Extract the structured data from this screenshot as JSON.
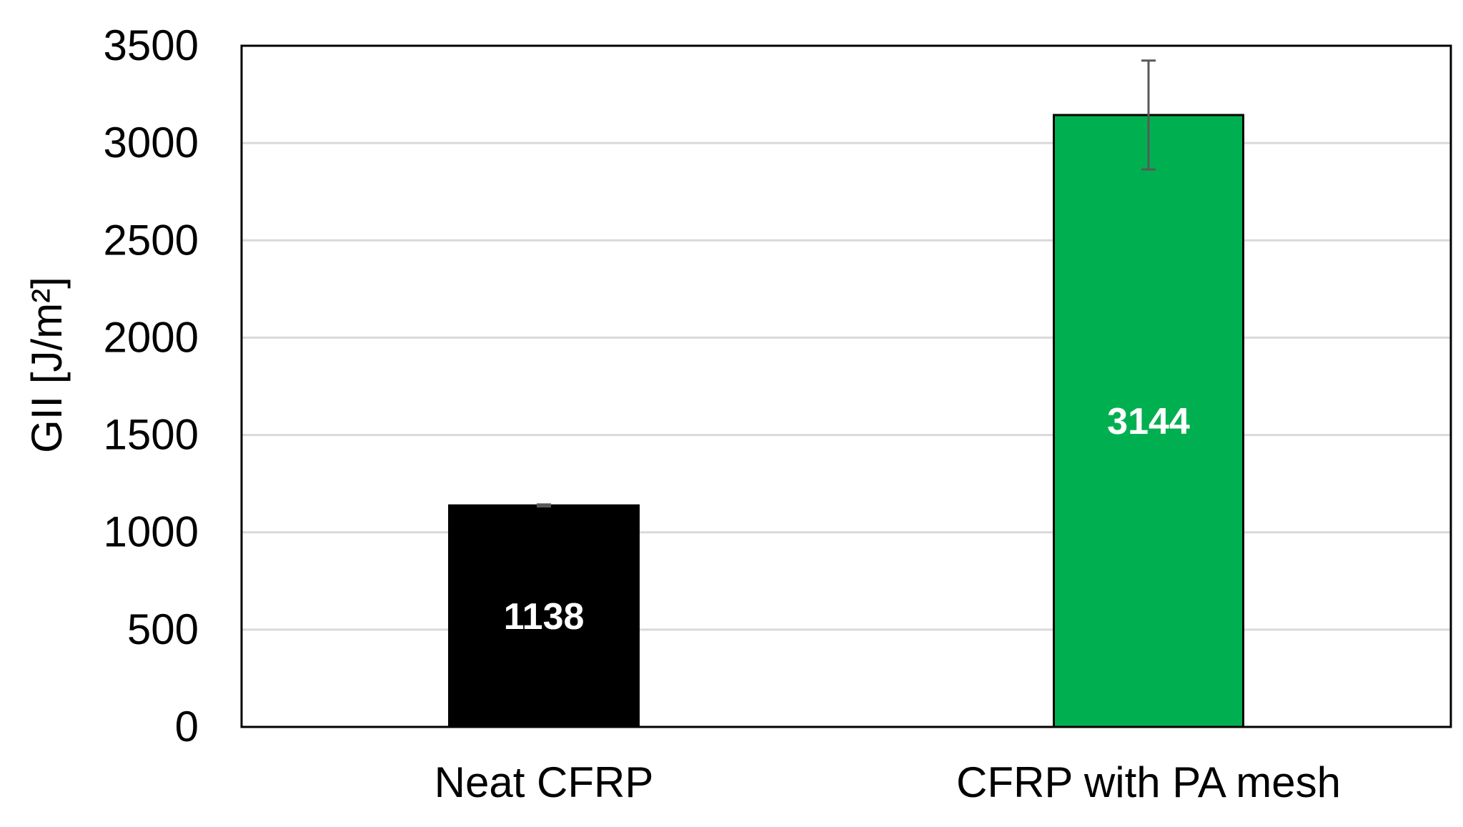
{
  "chart_data": {
    "type": "bar",
    "title": "",
    "xlabel": "",
    "ylabel": "GII [J/m²]",
    "ylim": [
      0,
      3500
    ],
    "yticks": [
      0,
      500,
      1000,
      1500,
      2000,
      2500,
      3000,
      3500
    ],
    "ytick_labels": [
      "0",
      "500",
      "1000",
      "1500",
      "2000",
      "2500",
      "3000",
      "3500"
    ],
    "grid": true,
    "legend": "none",
    "categories": [
      "Neat CFRP",
      "CFRP with PA mesh"
    ],
    "values": [
      1138,
      3144
    ],
    "error": [
      5,
      280
    ],
    "data_labels": [
      "1138",
      "3144"
    ],
    "colors": [
      "#000000",
      "#00B050"
    ],
    "label_color": "#ffffff",
    "gridline_color": "#d9d9d9",
    "errorbar_color": "#595959"
  }
}
